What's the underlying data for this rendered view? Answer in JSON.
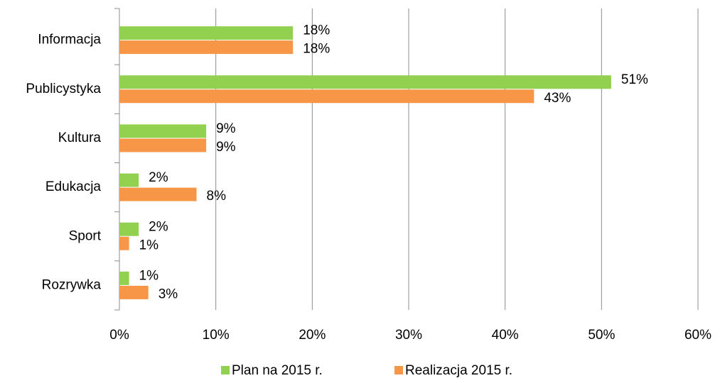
{
  "chart_data": {
    "type": "bar",
    "orientation": "horizontal",
    "categories": [
      "Informacja",
      "Publicystyka",
      "Kultura",
      "Edukacja",
      "Sport",
      "Rozrywka"
    ],
    "series": [
      {
        "name": "Plan na 2015 r.",
        "color": "#92d050",
        "values": [
          18,
          51,
          9,
          2,
          2,
          1
        ],
        "value_labels": [
          "18%",
          "51%",
          "9%",
          "2%",
          "2%",
          "1%"
        ]
      },
      {
        "name": "Realizacja 2015 r.",
        "color": "#f79646",
        "values": [
          18,
          43,
          9,
          8,
          1,
          3
        ],
        "value_labels": [
          "18%",
          "43%",
          "9%",
          "8%",
          "1%",
          "3%"
        ]
      }
    ],
    "xlim": [
      0,
      60
    ],
    "xticks": [
      {
        "value": 0,
        "label": "0%"
      },
      {
        "value": 10,
        "label": "10%"
      },
      {
        "value": 20,
        "label": "20%"
      },
      {
        "value": 30,
        "label": "30%"
      },
      {
        "value": 40,
        "label": "40%"
      },
      {
        "value": 50,
        "label": "50%"
      },
      {
        "value": 60,
        "label": "60%"
      }
    ],
    "grid": true,
    "legend": "bottom"
  }
}
